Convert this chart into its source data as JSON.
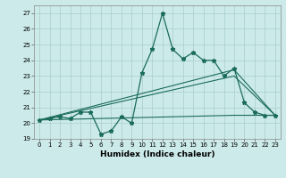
{
  "xlabel": "Humidex (Indice chaleur)",
  "background_color": "#cceaea",
  "grid_color": "#aacccc",
  "line_color": "#1a6b5a",
  "xlim": [
    -0.5,
    23.5
  ],
  "ylim": [
    19,
    27.5
  ],
  "yticks": [
    19,
    20,
    21,
    22,
    23,
    24,
    25,
    26,
    27
  ],
  "xticks": [
    0,
    1,
    2,
    3,
    4,
    5,
    6,
    7,
    8,
    9,
    10,
    11,
    12,
    13,
    14,
    15,
    16,
    17,
    18,
    19,
    20,
    21,
    22,
    23
  ],
  "main_series_x": [
    0,
    1,
    2,
    3,
    4,
    5,
    6,
    7,
    8,
    9,
    10,
    11,
    12,
    13,
    14,
    15,
    16,
    17,
    18,
    19,
    20,
    21,
    22,
    23
  ],
  "main_series_y": [
    20.2,
    20.3,
    20.4,
    20.3,
    20.7,
    20.7,
    19.3,
    19.5,
    20.4,
    20.0,
    23.2,
    24.7,
    27.0,
    24.7,
    24.1,
    24.5,
    24.0,
    24.0,
    23.0,
    23.5,
    21.3,
    20.7,
    20.5,
    20.5
  ],
  "trend1_x": [
    0,
    19,
    23
  ],
  "trend1_y": [
    20.2,
    23.4,
    20.5
  ],
  "trend2_x": [
    0,
    19,
    23
  ],
  "trend2_y": [
    20.2,
    23.0,
    20.5
  ],
  "trend3_x": [
    0,
    19,
    23
  ],
  "trend3_y": [
    20.2,
    20.5,
    20.5
  ]
}
